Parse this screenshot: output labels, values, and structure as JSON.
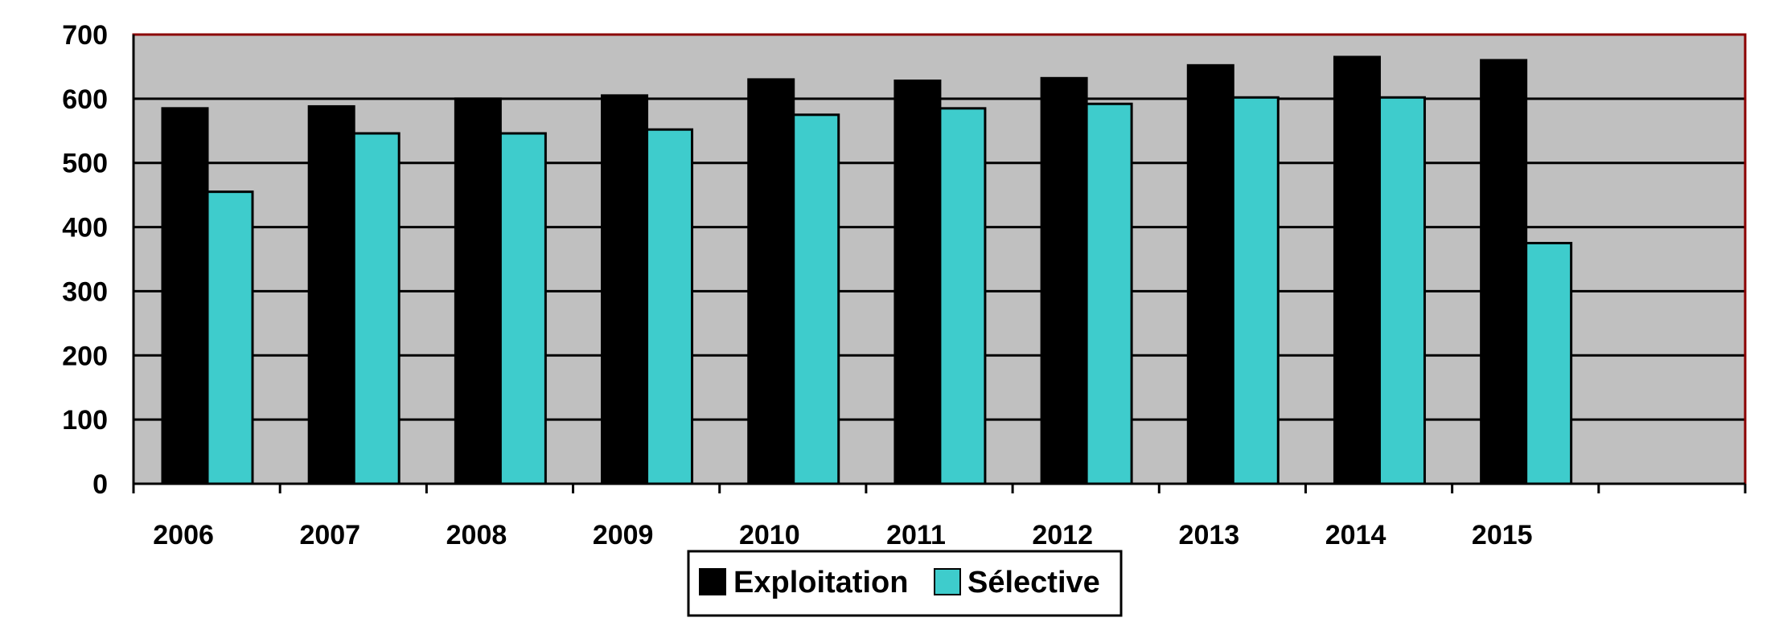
{
  "chart_data": {
    "type": "bar",
    "categories": [
      "2006",
      "2007",
      "2008",
      "2009",
      "2010",
      "2011",
      "2012",
      "2013",
      "2014",
      "2015",
      ""
    ],
    "series": [
      {
        "name": "Exploitation",
        "color": "#000000",
        "values": [
          585,
          588,
          600,
          605,
          630,
          628,
          632,
          652,
          665,
          660,
          null
        ]
      },
      {
        "name": "Sélective",
        "color": "#3ECCCC",
        "values": [
          455,
          546,
          546,
          552,
          575,
          585,
          592,
          602,
          602,
          375,
          null
        ]
      }
    ],
    "title": "",
    "xlabel": "",
    "ylabel": "",
    "ylim": [
      0,
      700
    ],
    "yticks": [
      0,
      100,
      200,
      300,
      400,
      500,
      600,
      700
    ],
    "grid": true,
    "plot_background": "#C0C0C0",
    "plot_border_color": "#8B0000",
    "legend_position": "bottom-center"
  }
}
